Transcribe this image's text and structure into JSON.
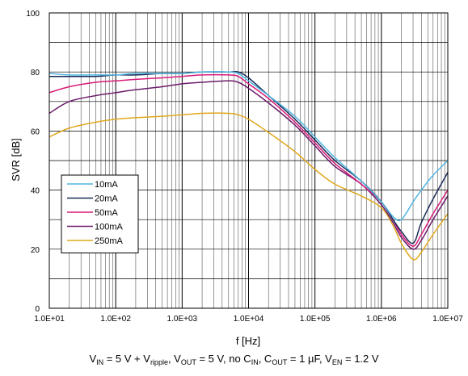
{
  "chart_data": {
    "type": "line",
    "xlabel": "f [Hz]",
    "ylabel": "SVR [dB]",
    "xscale": "log",
    "xlim": [
      10,
      10000000
    ],
    "ylim": [
      0,
      100
    ],
    "xtick_labels": [
      "1.0E+01",
      "1.0E+02",
      "1.0E+03",
      "1.0E+04",
      "1.0E+05",
      "1.0E+06",
      "1.0E+07"
    ],
    "ytick_labels": [
      "0",
      "20",
      "40",
      "60",
      "80",
      "100"
    ],
    "grid": true,
    "legend": "left-bottom",
    "x": [
      10,
      20,
      50,
      100,
      200,
      500,
      1000,
      2000,
      5000,
      7000,
      10000,
      20000,
      50000,
      100000,
      200000,
      500000,
      1000000,
      1500000,
      2000000,
      3000000,
      4000000,
      6000000,
      10000000
    ],
    "series": [
      {
        "name": "10mA",
        "color": "#4fb5e3",
        "values": [
          79.5,
          79,
          79,
          79,
          79.5,
          79.5,
          79.5,
          80,
          80,
          79.5,
          77,
          72,
          65,
          58,
          51,
          43,
          36,
          31,
          30,
          36,
          40,
          45,
          50
        ]
      },
      {
        "name": "20mA",
        "color": "#1a2a55",
        "values": [
          78.5,
          78.5,
          78.5,
          79,
          79,
          79.5,
          79.5,
          80,
          80,
          80,
          78,
          72,
          64,
          57,
          50,
          43,
          36,
          30,
          26,
          22,
          29,
          37,
          46
        ]
      },
      {
        "name": "50mA",
        "color": "#d81b78",
        "values": [
          73,
          75,
          76.5,
          77,
          77.5,
          78,
          78.5,
          79,
          79,
          78.5,
          76,
          71,
          63,
          56,
          49,
          42,
          36,
          30,
          25,
          21,
          25,
          32,
          40
        ]
      },
      {
        "name": "100mA",
        "color": "#6b1a6a",
        "values": [
          66,
          70,
          72,
          73,
          74,
          75,
          76,
          76.5,
          77,
          76.5,
          74.5,
          69.5,
          62,
          55,
          48,
          42,
          35,
          29,
          24,
          20,
          23,
          30,
          38
        ]
      },
      {
        "name": "250mA",
        "color": "#e0a81e",
        "values": [
          58,
          61,
          63,
          64,
          64.5,
          65,
          65.5,
          66,
          66,
          65.5,
          64,
          59.5,
          53,
          47,
          42,
          38,
          34,
          28,
          22,
          16.5,
          19,
          25,
          32
        ]
      }
    ],
    "caption": {
      "prefix": "V",
      "in_sub": "IN",
      "part1": " = 5 V + V",
      "ripple_sub": "ripple",
      "part2": ", V",
      "out_sub": "OUT",
      "part3": " = 5 V, no C",
      "cin_sub": "IN",
      "part4": ", C",
      "cout_sub": "OUT",
      "part5": " = 1 µF, V",
      "en_sub": "EN",
      "part6": " = 1.2 V"
    }
  }
}
